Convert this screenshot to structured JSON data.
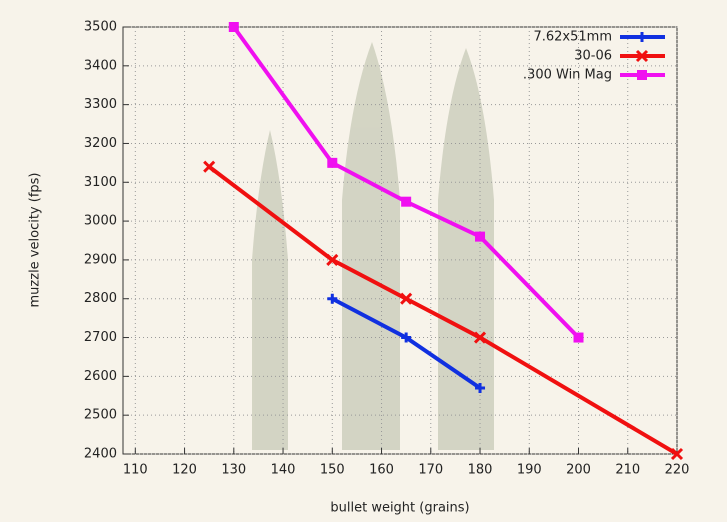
{
  "chart_data": {
    "type": "line",
    "x_label": "bullet weight (grains)",
    "y_label": "muzzle velocity (fps)",
    "xlim": [
      107.5,
      220
    ],
    "xticks": [
      110,
      120,
      130,
      140,
      150,
      160,
      170,
      180,
      190,
      200,
      210,
      220
    ],
    "ylim": [
      2400,
      3500
    ],
    "yticks": [
      2400,
      2500,
      2600,
      2700,
      2800,
      2900,
      3000,
      3100,
      3200,
      3300,
      3400,
      3500
    ],
    "grid": true,
    "legend": "top-right",
    "series": [
      {
        "name": "7.62x51mm",
        "color": "#1030e0",
        "marker": "plus",
        "x": [
          150,
          165,
          180
        ],
        "values": [
          2800,
          2700,
          2570
        ]
      },
      {
        "name": "30-06",
        "color": "#f01010",
        "marker": "cross",
        "x": [
          125,
          150,
          165,
          180,
          220
        ],
        "values": [
          3140,
          2900,
          2800,
          2700,
          2400
        ]
      },
      {
        "name": ".300 Win Mag",
        "color": "#f010f0",
        "marker": "square",
        "x": [
          130,
          150,
          165,
          180,
          200
        ],
        "values": [
          3500,
          3150,
          3050,
          2960,
          2700
        ]
      }
    ]
  }
}
